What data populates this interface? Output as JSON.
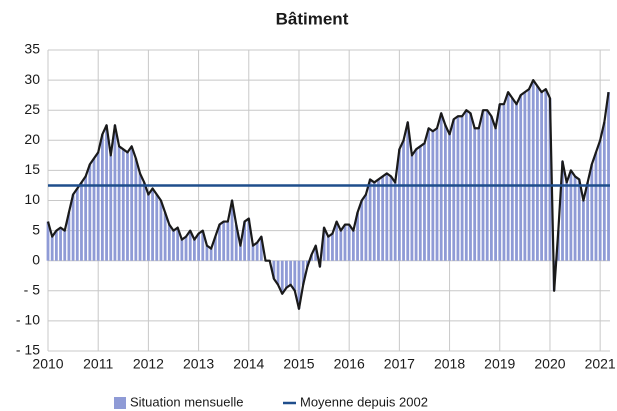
{
  "chart_data": {
    "type": "bar",
    "title": "Bâtiment",
    "categories": [
      "2010",
      null,
      null,
      null,
      null,
      null,
      null,
      null,
      null,
      null,
      null,
      null,
      "2011",
      null,
      null,
      null,
      null,
      null,
      null,
      null,
      null,
      null,
      null,
      null,
      "2012",
      null,
      null,
      null,
      null,
      null,
      null,
      null,
      null,
      null,
      null,
      null,
      "2013",
      null,
      null,
      null,
      null,
      null,
      null,
      null,
      null,
      null,
      null,
      null,
      "2014",
      null,
      null,
      null,
      null,
      null,
      null,
      null,
      null,
      null,
      null,
      null,
      "2015",
      null,
      null,
      null,
      null,
      null,
      null,
      null,
      null,
      null,
      null,
      null,
      "2016",
      null,
      null,
      null,
      null,
      null,
      null,
      null,
      null,
      null,
      null,
      null,
      "2017",
      null,
      null,
      null,
      null,
      null,
      null,
      null,
      null,
      null,
      null,
      null,
      "2018",
      null,
      null,
      null,
      null,
      null,
      null,
      null,
      null,
      null,
      null,
      null,
      "2019",
      null,
      null,
      null,
      null,
      null,
      null,
      null,
      null,
      null,
      null,
      null,
      "2020",
      null,
      null,
      null,
      null,
      null,
      null,
      null,
      null,
      null,
      null,
      null,
      "2021",
      null,
      null
    ],
    "series": [
      {
        "name": "Situation mensuelle",
        "color": "#8f9bd6",
        "line_color": "#1a1a1a",
        "values": [
          6.5,
          4,
          5,
          5.5,
          5,
          8,
          11,
          12,
          13,
          14,
          16,
          17,
          18,
          21,
          22.5,
          17.5,
          22.5,
          19,
          18.5,
          18,
          19,
          17,
          14.5,
          13,
          11,
          12,
          11,
          10,
          8,
          6,
          5,
          5.5,
          3.5,
          4,
          5,
          3.5,
          4.5,
          5,
          2.5,
          2,
          4,
          6,
          6.5,
          6.5,
          10,
          6,
          2.5,
          6.5,
          7,
          2.5,
          3,
          4,
          0,
          0,
          -3,
          -4,
          -5.5,
          -4.5,
          -4,
          -5,
          -8,
          -4,
          -1,
          1,
          2.5,
          -1,
          5.5,
          4,
          4.5,
          6.5,
          5,
          6,
          6,
          5,
          8,
          10,
          11,
          13.5,
          13,
          13.5,
          14,
          14.5,
          14,
          13,
          18.5,
          20,
          23,
          17.5,
          18.5,
          19,
          19.5,
          22,
          21.5,
          22,
          24.5,
          22.5,
          21,
          23.5,
          24,
          24,
          25,
          24.5,
          22,
          22,
          25,
          25,
          24,
          22,
          26,
          26,
          28,
          27,
          26,
          27.5,
          28,
          28.5,
          30,
          29,
          28,
          28.5,
          27,
          -5,
          5,
          16.5,
          13,
          15,
          14,
          13.5,
          10,
          13,
          16,
          18,
          20,
          23,
          28
        ]
      }
    ],
    "mean": {
      "name": "Moyenne depuis 2002",
      "value": 12.5,
      "color": "#1f4e8c"
    },
    "ylim": [
      -15,
      35
    ],
    "yticks": [
      {
        "value": -15,
        "label": "- 15"
      },
      {
        "value": -10,
        "label": "- 10"
      },
      {
        "value": -5,
        "label": "- 5"
      },
      0,
      5,
      10,
      15,
      20,
      25,
      30,
      35
    ],
    "grid": true
  }
}
